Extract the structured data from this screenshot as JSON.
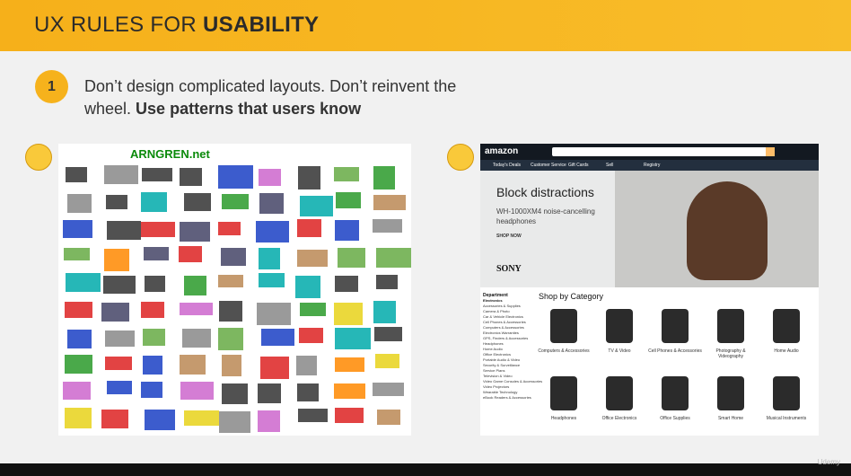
{
  "header": {
    "title_regular": "UX RULES FOR",
    "title_bold": "USABILITY"
  },
  "rule": {
    "number": "1",
    "text": "Don’t design complicated layouts. Don’t reinvent the wheel.",
    "emphasis": "Use patterns that users know"
  },
  "bad_example": {
    "site": "ARNGREN.net"
  },
  "good_example": {
    "logo": "amazon",
    "nav": [
      "Today's Deals",
      "Customer Service",
      "Gift Cards",
      "Sell",
      "Registry"
    ],
    "hero": {
      "title": "Block distractions",
      "subtitle": "WH-1000XM4 noise-cancelling headphones",
      "cta": "SHOP NOW",
      "brand": "SONY"
    },
    "department": {
      "title": "Department",
      "items": [
        "Electronics",
        "Accessories & Supplies",
        "Camera & Photo",
        "Car & Vehicle Electronics",
        "Cell Phones & Accessories",
        "Computers & Accessories",
        "Electronics Warranties",
        "GPS, Finders & Accessories",
        "Headphones",
        "Home Audio",
        "Office Electronics",
        "Portable Audio & Video",
        "Security & Surveillance",
        "Service Plans",
        "Television & Video",
        "Video Game Consoles & Accessories",
        "Video Projectors",
        "Wearable Technology",
        "eBook Readers & Accessories"
      ]
    },
    "shop_by_category": {
      "title": "Shop by Category",
      "items": [
        "Computers & Accessories",
        "TV & Video",
        "Cell Phones & Accessories",
        "Photography & Videography",
        "Home Audio",
        "Headphones",
        "Office Electronics",
        "Office Supplies",
        "Smart Home",
        "Musical Instruments"
      ]
    }
  },
  "watermark": "Udemy"
}
